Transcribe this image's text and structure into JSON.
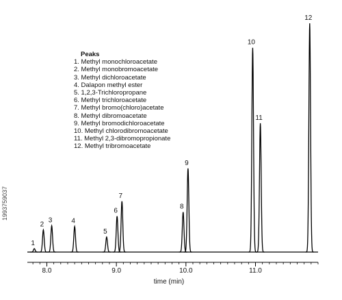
{
  "chart_data": {
    "type": "line",
    "xlabel": "time (min)",
    "ylabel": "",
    "xlim": [
      7.72,
      11.9
    ],
    "ylim": [
      0,
      100
    ],
    "x_ticks": [
      8.0,
      9.0,
      10.0,
      11.0
    ],
    "x_tick_labels": [
      "8.0",
      "9.0",
      "10.0",
      "11.0"
    ],
    "grid": false,
    "legend_title": "Peaks",
    "legend_entries": [
      "1. Methyl monochloroacetate",
      "2. Methyl monobromoacetate",
      "3. Methyl dichloroacetate",
      "4. Dalapon methyl ester",
      "5. 1,2,3-Trichloropropane",
      "6. Methyl trichloroacetate",
      "7. Methyl bromo(chloro)acetate",
      "8. Methyl dibromoacetate",
      "9. Methyl bromodichloroacetate",
      "10. Methyl chlorodibromoacetate",
      "11. Methyl 2,3-dibromopropionate",
      "12. Methyl tribromoacetate"
    ],
    "peaks": [
      {
        "label": "1",
        "time": 7.82,
        "height": 1.5
      },
      {
        "label": "2",
        "time": 7.95,
        "height": 9.7
      },
      {
        "label": "3",
        "time": 8.07,
        "height": 11.5
      },
      {
        "label": "4",
        "time": 8.4,
        "height": 11.2
      },
      {
        "label": "5",
        "time": 8.86,
        "height": 6.6
      },
      {
        "label": "6",
        "time": 9.01,
        "height": 15.7
      },
      {
        "label": "7",
        "time": 9.08,
        "height": 22.2
      },
      {
        "label": "8",
        "time": 9.96,
        "height": 17.5
      },
      {
        "label": "9",
        "time": 10.03,
        "height": 36.6
      },
      {
        "label": "10",
        "time": 10.96,
        "height": 89.3
      },
      {
        "label": "11",
        "time": 11.07,
        "height": 56.3
      },
      {
        "label": "12",
        "time": 11.78,
        "height": 100
      }
    ]
  },
  "watermark_text": "1993759037"
}
